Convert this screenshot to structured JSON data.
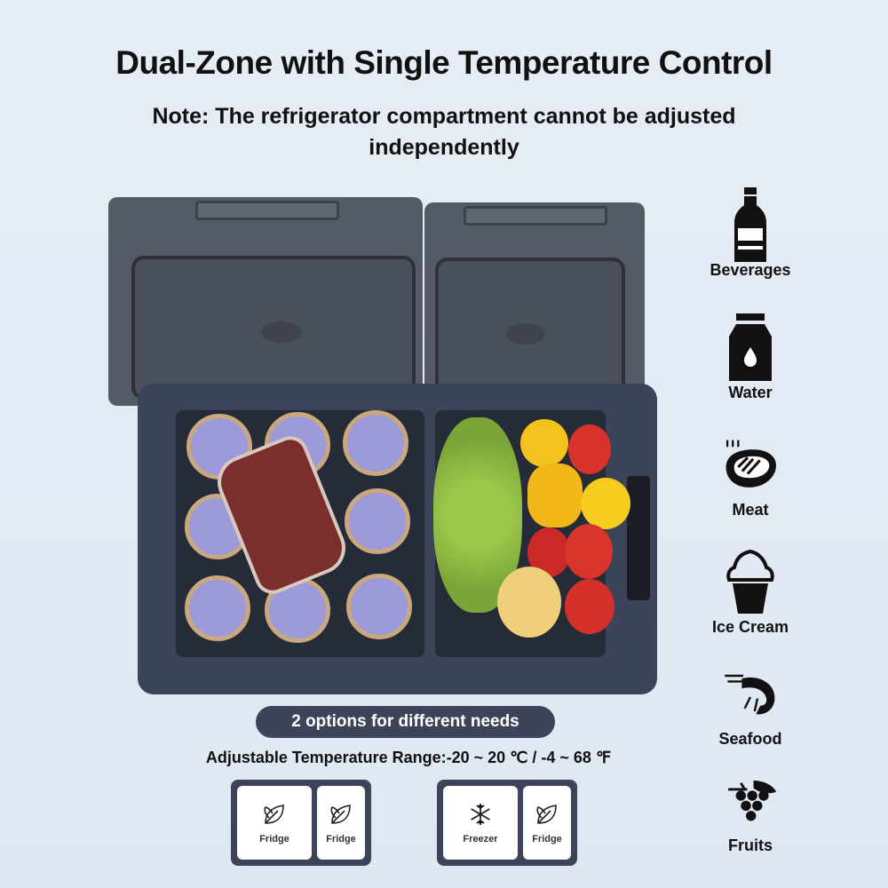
{
  "title": "Dual-Zone with Single Temperature Control",
  "note": "Note: The refrigerator compartment cannot be adjusted independently",
  "categories": [
    {
      "label": "Beverages",
      "icon": "bottle-icon"
    },
    {
      "label": "Water",
      "icon": "milk-jar-icon"
    },
    {
      "label": "Meat",
      "icon": "steak-icon"
    },
    {
      "label": "Ice Cream",
      "icon": "ice-cream-icon"
    },
    {
      "label": "Seafood",
      "icon": "shrimp-icon"
    },
    {
      "label": "Fruits",
      "icon": "grapes-icon"
    }
  ],
  "options_badge": "2 options for different needs",
  "temperature_range": "Adjustable Temperature Range:-20 ~ 20 ℃ / -4 ~ 68 ℉",
  "options": [
    {
      "zones": [
        {
          "label": "Fridge",
          "icon": "leaf-icon"
        },
        {
          "label": "Fridge",
          "icon": "leaf-icon"
        }
      ]
    },
    {
      "zones": [
        {
          "label": "Freezer",
          "icon": "snowflake-icon"
        },
        {
          "label": "Fridge",
          "icon": "leaf-icon"
        }
      ]
    }
  ],
  "colors": {
    "background": "#e4ebf3",
    "cooler_body": "#3c4459",
    "lid": "#555b66",
    "badge": "#3d4459"
  }
}
